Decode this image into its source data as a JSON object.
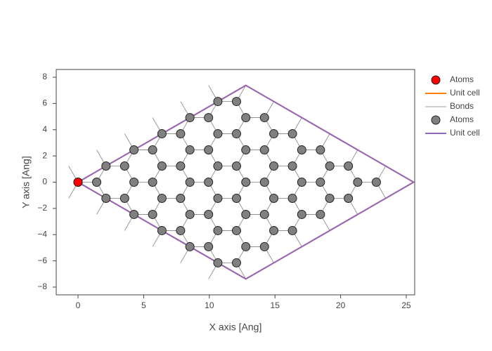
{
  "chart_data": {
    "type": "scatter",
    "xlabel": "X axis [Ang]",
    "ylabel": "Y axis [Ang]",
    "xlim": [
      -1.66,
      25.64
    ],
    "ylim": [
      -8.59,
      8.59
    ],
    "xticks": [
      0,
      5,
      10,
      15,
      20,
      25
    ],
    "yticks": [
      {
        "value": -8,
        "label": "−8"
      },
      {
        "value": -6,
        "label": "−6"
      },
      {
        "value": -4,
        "label": "−4"
      },
      {
        "value": -2,
        "label": "−2"
      },
      0,
      2,
      4,
      6,
      8
    ],
    "grid": false,
    "legend": "right",
    "series": [
      {
        "name": "Atoms",
        "mode": "markers",
        "color": "#ff0000",
        "x": [
          0
        ],
        "y": [
          0
        ]
      },
      {
        "name": "Unit cell",
        "mode": "lines",
        "color": "#ff7f0e",
        "x": [
          0,
          12.78,
          25.56,
          12.78,
          0
        ],
        "y": [
          0,
          7.38,
          0,
          -7.38,
          0
        ]
      },
      {
        "name": "Bonds",
        "mode": "lines",
        "color": "#808080",
        "x": [
          -0.71,
          0,
          1.42,
          2.13,
          3.55,
          4.26,
          5.68,
          6.39,
          7.81,
          8.52,
          9.94,
          10.65,
          12.07,
          12.78,
          null,
          1.42,
          2.13,
          3.55,
          4.26,
          5.68,
          6.39,
          7.81,
          8.52,
          9.94,
          10.65,
          12.07,
          12.78,
          14.2,
          14.91,
          null,
          3.55,
          4.26,
          5.68,
          6.39,
          7.81,
          8.52,
          9.94,
          10.65,
          12.07,
          12.78,
          14.2,
          14.91,
          16.33,
          17.04,
          null,
          5.68,
          6.39,
          7.81,
          8.52,
          9.94,
          10.65,
          12.07,
          12.78,
          14.2,
          14.91,
          16.33,
          17.04,
          18.46,
          19.17,
          null,
          7.81,
          8.52,
          9.94,
          10.65,
          12.07,
          12.78,
          14.2,
          14.91,
          16.33,
          17.04,
          18.46,
          19.17,
          20.59,
          21.3,
          null,
          9.94,
          10.65,
          12.07,
          12.78,
          14.2,
          14.91,
          16.33,
          17.04,
          18.46,
          19.17,
          20.59,
          21.3,
          22.72,
          23.43,
          null,
          -0.71,
          0,
          1.42,
          2.13,
          3.55,
          4.26,
          5.68,
          6.39,
          7.81,
          8.52,
          9.94,
          10.65,
          12.07,
          12.78,
          null,
          1.42,
          2.13,
          3.55,
          4.26,
          5.68,
          6.39,
          7.81,
          8.52,
          9.94,
          10.65,
          12.07,
          12.78,
          14.2,
          14.91,
          null,
          3.55,
          4.26,
          5.68,
          6.39,
          7.81,
          8.52,
          9.94,
          10.65,
          12.07,
          12.78,
          14.2,
          14.91,
          16.33,
          17.04,
          null,
          5.68,
          6.39,
          7.81,
          8.52,
          9.94,
          10.65,
          12.07,
          12.78,
          14.2,
          14.91,
          16.33,
          17.04,
          18.46,
          19.17,
          null,
          7.81,
          8.52,
          9.94,
          10.65,
          12.07,
          12.78,
          14.2,
          14.91,
          16.33,
          17.04,
          18.46,
          19.17,
          20.59,
          21.3,
          null,
          9.94,
          10.65,
          12.07,
          12.78,
          14.2,
          14.91,
          16.33,
          17.04,
          18.46,
          19.17,
          20.59,
          21.3,
          22.72,
          23.43
        ],
        "y": [
          -1.23,
          0,
          0,
          1.23,
          1.23,
          2.46,
          2.46,
          3.69,
          3.69,
          4.92,
          4.92,
          6.15,
          6.15,
          7.38,
          null,
          -2.46,
          -1.23,
          -1.23,
          0,
          0,
          1.23,
          1.23,
          2.46,
          2.46,
          3.69,
          3.69,
          4.92,
          4.92,
          6.15,
          null,
          -3.69,
          -2.46,
          -2.46,
          -1.23,
          -1.23,
          0,
          0,
          1.23,
          1.23,
          2.46,
          2.46,
          3.69,
          3.69,
          4.92,
          null,
          -4.92,
          -3.69,
          -3.69,
          -2.46,
          -2.46,
          -1.23,
          -1.23,
          0,
          0,
          1.23,
          1.23,
          2.46,
          2.46,
          3.69,
          null,
          -6.15,
          -4.92,
          -4.92,
          -3.69,
          -3.69,
          -2.46,
          -2.46,
          -1.23,
          -1.23,
          0,
          0,
          1.23,
          1.23,
          2.46,
          null,
          -7.38,
          -6.15,
          -6.15,
          -4.92,
          -4.92,
          -3.69,
          -3.69,
          -2.46,
          -2.46,
          -1.23,
          -1.23,
          0,
          0,
          1.23,
          null,
          1.23,
          0,
          0,
          -1.23,
          -1.23,
          -2.46,
          -2.46,
          -3.69,
          -3.69,
          -4.92,
          -4.92,
          -6.15,
          -6.15,
          -7.38,
          null,
          2.46,
          1.23,
          1.23,
          0,
          0,
          -1.23,
          -1.23,
          -2.46,
          -2.46,
          -3.69,
          -3.69,
          -4.92,
          -4.92,
          -6.15,
          null,
          3.69,
          2.46,
          2.46,
          1.23,
          1.23,
          0,
          0,
          -1.23,
          -1.23,
          -2.46,
          -2.46,
          -3.69,
          -3.69,
          -4.92,
          null,
          4.92,
          3.69,
          3.69,
          2.46,
          2.46,
          1.23,
          1.23,
          0,
          0,
          -1.23,
          -1.23,
          -2.46,
          -2.46,
          -3.69,
          null,
          6.15,
          4.92,
          4.92,
          3.69,
          3.69,
          2.46,
          2.46,
          1.23,
          1.23,
          0,
          0,
          -1.23,
          -1.23,
          -2.46,
          null,
          7.38,
          6.15,
          6.15,
          4.92,
          4.92,
          3.69,
          3.69,
          2.46,
          2.46,
          1.23,
          1.23,
          0,
          0,
          -1.23
        ]
      },
      {
        "name": "Atoms",
        "mode": "markers",
        "color": "#808080",
        "x": [
          0,
          1.42,
          2.13,
          3.55,
          4.26,
          5.68,
          6.39,
          7.81,
          8.52,
          9.94,
          10.65,
          12.07,
          2.13,
          3.55,
          4.26,
          5.68,
          6.39,
          7.81,
          8.52,
          9.94,
          10.65,
          12.07,
          12.78,
          14.2,
          4.26,
          5.68,
          6.39,
          7.81,
          8.52,
          9.94,
          10.65,
          12.07,
          12.78,
          14.2,
          14.91,
          16.33,
          6.39,
          7.81,
          8.52,
          9.94,
          10.65,
          12.07,
          12.78,
          14.2,
          14.91,
          16.33,
          17.04,
          18.46,
          8.52,
          9.94,
          10.65,
          12.07,
          12.78,
          14.2,
          14.91,
          16.33,
          17.04,
          18.46,
          19.17,
          20.59,
          10.65,
          12.07,
          12.78,
          14.2,
          14.91,
          16.33,
          17.04,
          18.46,
          19.17,
          20.59,
          21.3,
          22.72
        ],
        "y": [
          0,
          0,
          1.23,
          1.23,
          2.46,
          2.46,
          3.69,
          3.69,
          4.92,
          4.92,
          6.15,
          6.15,
          -1.23,
          -1.23,
          0,
          0,
          1.23,
          1.23,
          2.46,
          2.46,
          3.69,
          3.69,
          4.92,
          4.92,
          -2.46,
          -2.46,
          -1.23,
          -1.23,
          0,
          0,
          1.23,
          1.23,
          2.46,
          2.46,
          3.69,
          3.69,
          -3.69,
          -3.69,
          -2.46,
          -2.46,
          -1.23,
          -1.23,
          0,
          0,
          1.23,
          1.23,
          2.46,
          2.46,
          -4.92,
          -4.92,
          -3.69,
          -3.69,
          -2.46,
          -2.46,
          -1.23,
          -1.23,
          0,
          0,
          1.23,
          1.23,
          -6.15,
          -6.15,
          -4.92,
          -4.92,
          -3.69,
          -3.69,
          -2.46,
          -2.46,
          -1.23,
          -1.23,
          0,
          0
        ]
      },
      {
        "name": "Unit cell",
        "mode": "lines",
        "color": "#9467bd",
        "x": [
          0,
          12.78,
          25.56,
          12.78,
          0
        ],
        "y": [
          0,
          7.38,
          0,
          -7.38,
          0
        ]
      }
    ]
  }
}
